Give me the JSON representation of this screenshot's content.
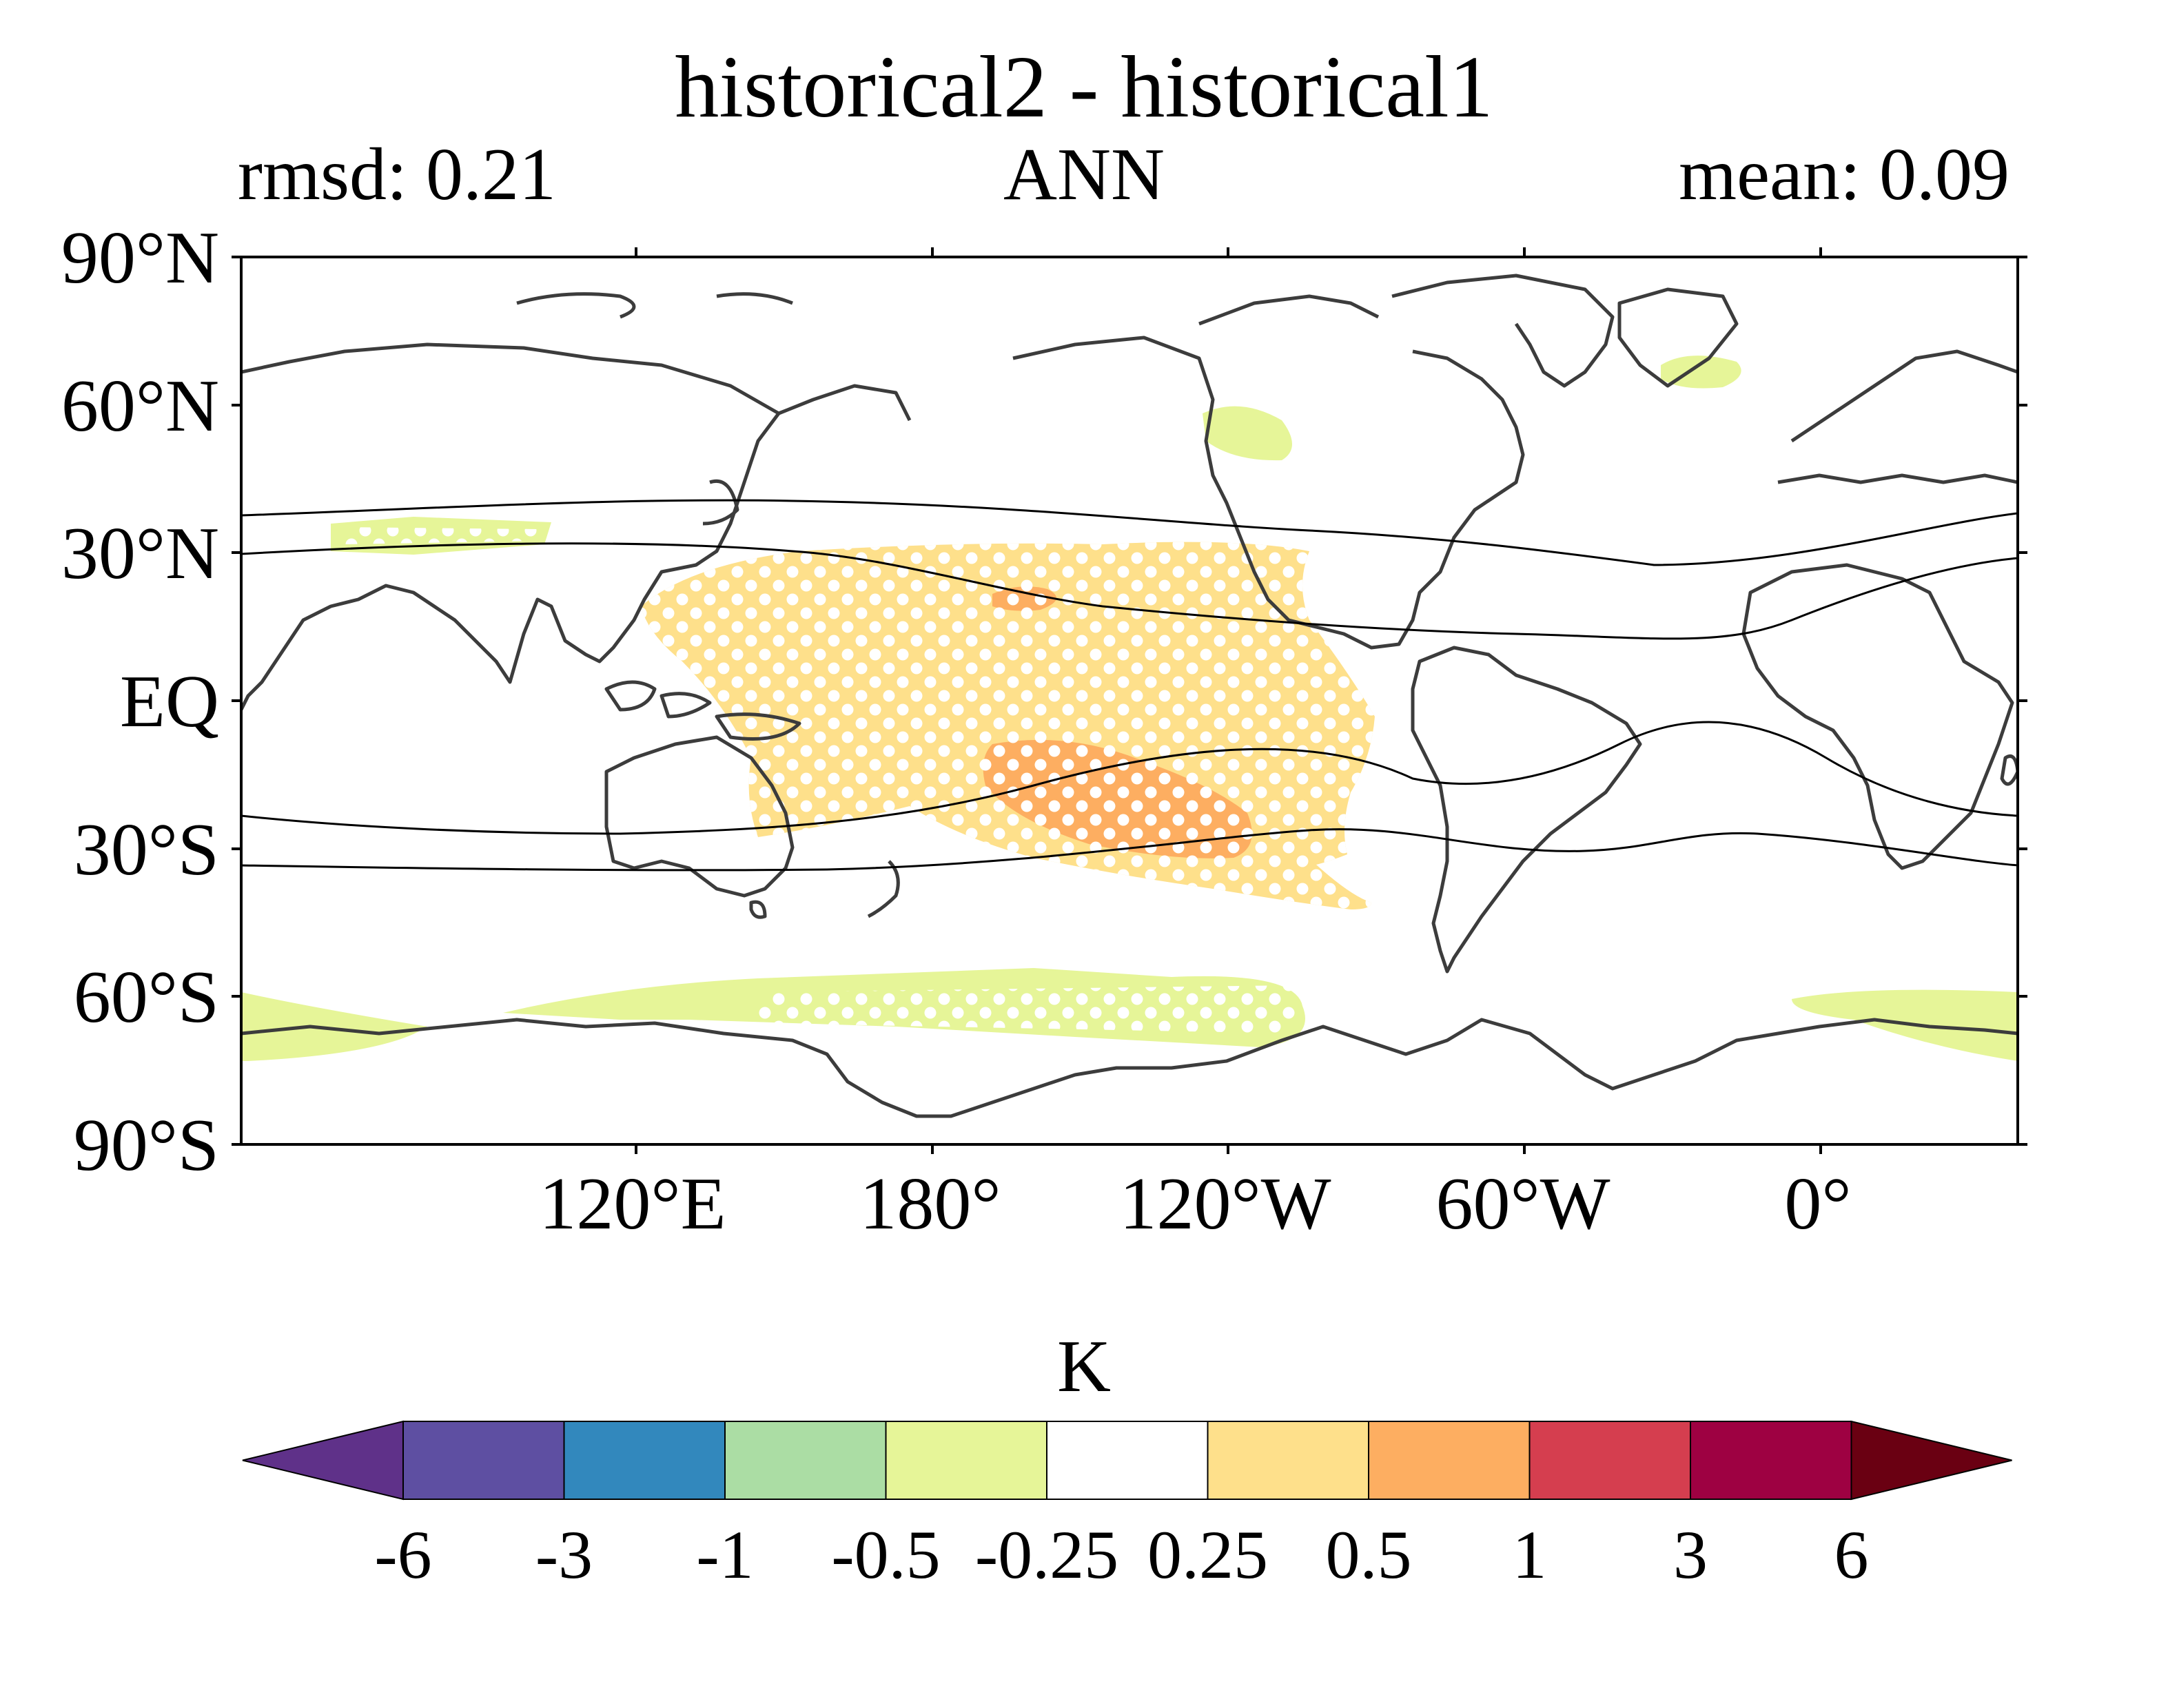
{
  "title": "historical2 - historical1",
  "rmsd_label": "rmsd: 0.21",
  "season": "ANN",
  "mean_label": "mean: 0.09",
  "colorbar": {
    "unit": "K",
    "levels": [
      "-6",
      "-3",
      "-1",
      "-0.5",
      "-0.25",
      "0.25",
      "0.5",
      "1",
      "3",
      "6"
    ],
    "colors": [
      "#5f3189",
      "#5e4fa2",
      "#3288bd",
      "#abdda4",
      "#e6f598",
      "#ffffff",
      "#fee08b",
      "#fdae61",
      "#d53e4f",
      "#9e0142",
      "#6a0012"
    ]
  },
  "map": {
    "projection": "PlateCarree, centered at 30°W",
    "y_ticks": [
      "90°N",
      "60°N",
      "30°N",
      "EQ",
      "30°S",
      "60°S",
      "90°S"
    ],
    "x_ticks": [
      "120°E",
      "180°",
      "120°W",
      "60°W",
      "0°"
    ],
    "stippling": "white dots = significant difference",
    "overlay": "black contours"
  }
}
